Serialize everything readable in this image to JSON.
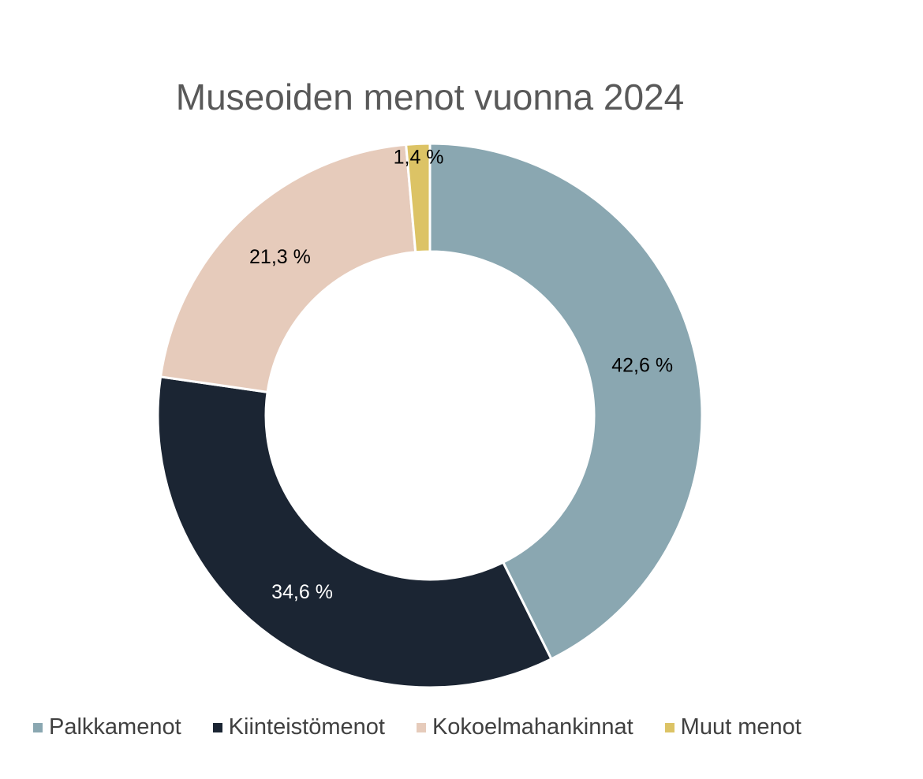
{
  "chart_data": {
    "type": "pie",
    "variant": "donut",
    "title": "Museoiden menot vuonna 2024",
    "categories": [
      "Palkkamenot",
      "Kiinteistömenot",
      "Kokoelmahankinnat",
      "Muut menot"
    ],
    "values": [
      42.6,
      34.6,
      21.3,
      1.4
    ],
    "labels": [
      "42,6 %",
      "34,6 %",
      "21,3 %",
      "1,4 %"
    ],
    "colors": [
      "#8aa7b1",
      "#1b2533",
      "#e6cbbb",
      "#dcc365"
    ],
    "label_colors": [
      "#000000",
      "#ffffff",
      "#000000",
      "#000000"
    ],
    "legend_position": "bottom"
  }
}
